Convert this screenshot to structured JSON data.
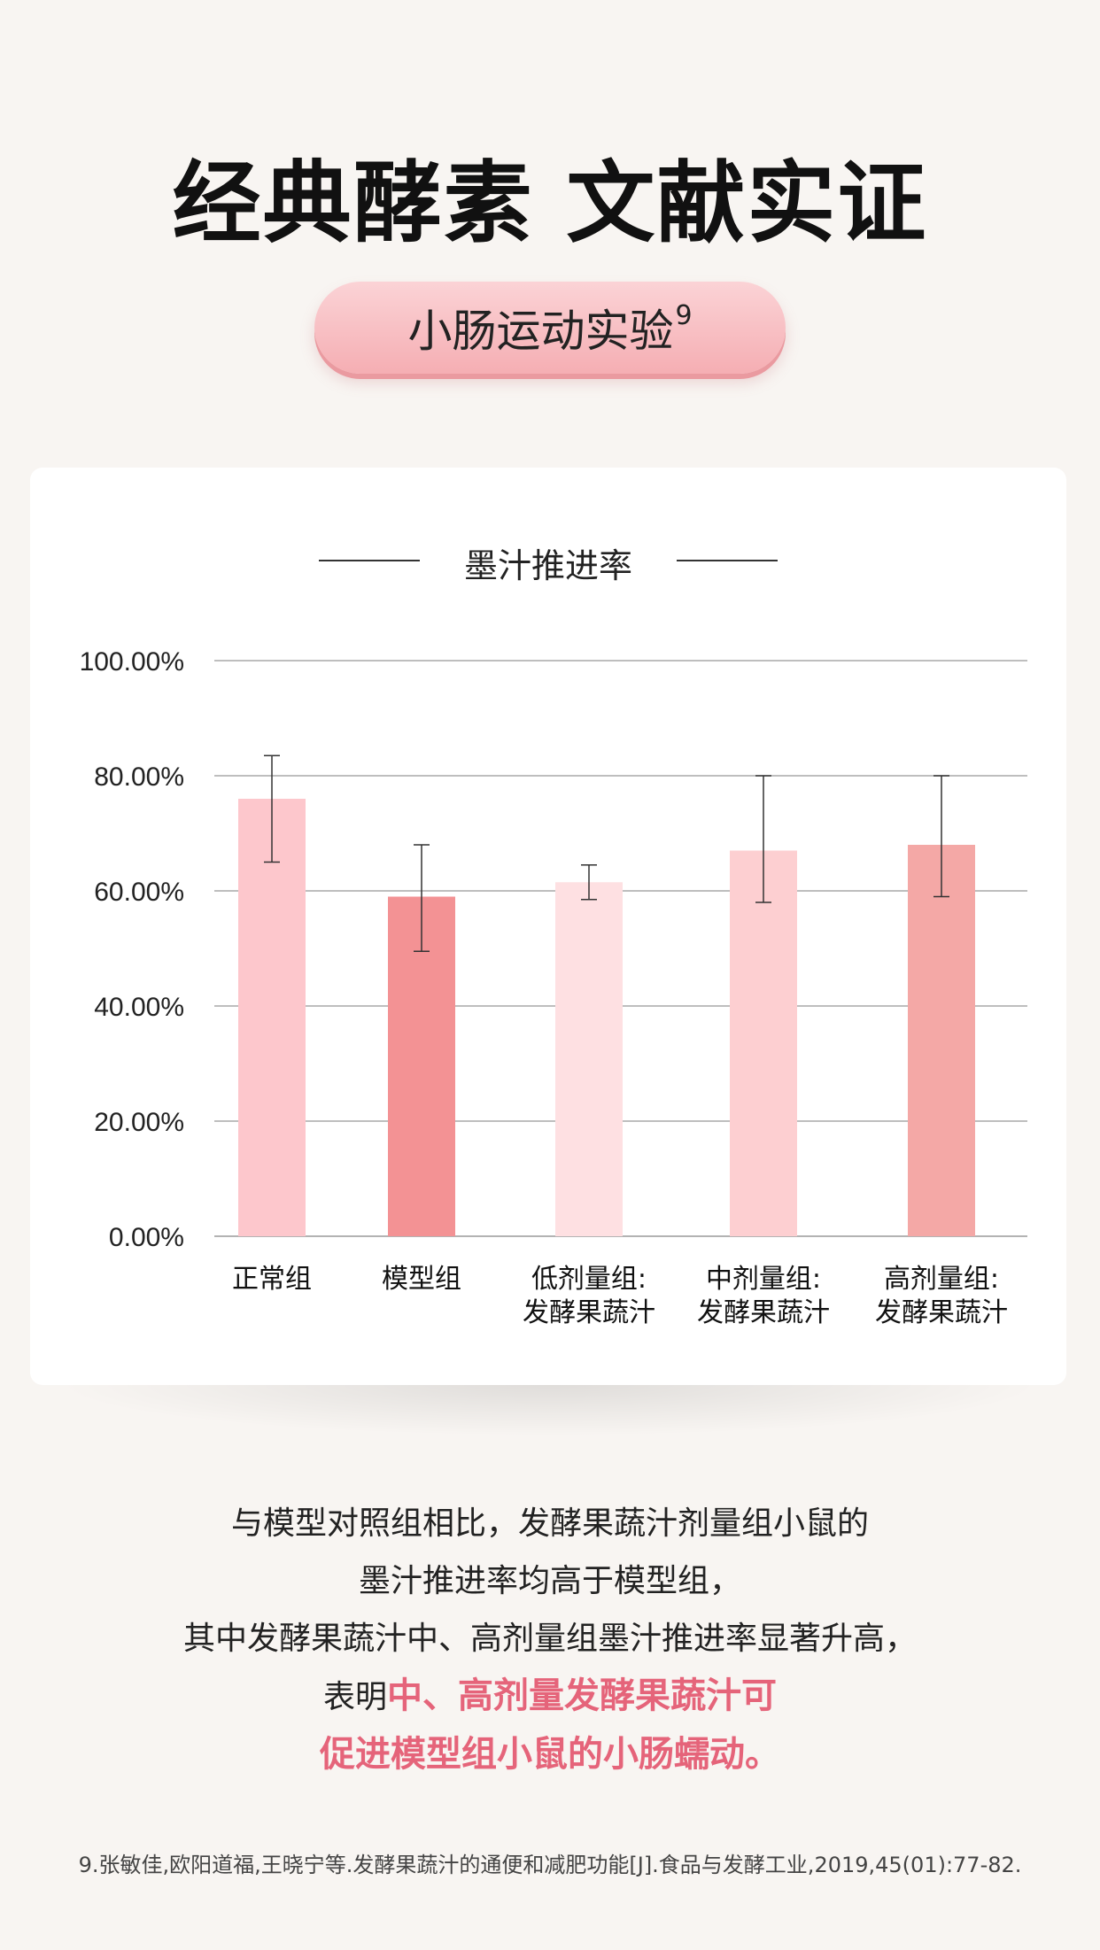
{
  "header": {
    "title": "经典酵素 文献实证",
    "pill_label": "小肠运动实验",
    "pill_sup": "9"
  },
  "chart_data": {
    "type": "bar",
    "title": "墨汁推进率",
    "categories": [
      "正常组",
      "模型组",
      "低剂量组:\n发酵果蔬汁",
      "中剂量组:\n发酵果蔬汁",
      "高剂量组:\n发酵果蔬汁"
    ],
    "values": [
      76,
      59,
      61.5,
      67,
      68
    ],
    "error": [
      [
        65,
        83.5
      ],
      [
        49.5,
        68
      ],
      [
        58.5,
        64.5
      ],
      [
        58,
        80
      ],
      [
        59,
        80
      ]
    ],
    "colors": [
      "#fdc7cc",
      "#f39294",
      "#fee0e2",
      "#fdcfd1",
      "#f4a8a6"
    ],
    "ylim": [
      0,
      100
    ],
    "yticks": [
      "0.00%",
      "20.00%",
      "40.00%",
      "60.00%",
      "80.00%",
      "100.00%"
    ],
    "ytick_values": [
      0,
      20,
      40,
      60,
      80,
      100
    ],
    "grid": true
  },
  "description": {
    "line1": "与模型对照组相比，发酵果蔬汁剂量组小鼠的",
    "line2": "墨汁推进率均高于模型组，",
    "line3": "其中发酵果蔬汁中、高剂量组墨汁推进率显著升高，",
    "line4_prefix": "表明",
    "line4_highlight": "中、高剂量发酵果蔬汁可",
    "line5_highlight": "促进模型组小鼠的小肠蠕动。",
    "highlight_color": "#e5647a"
  },
  "reference": "9.张敏佳,欧阳道福,王晓宁等.发酵果蔬汁的通便和减肥功能[J].食品与发酵工业,2019,45(01):77-82."
}
